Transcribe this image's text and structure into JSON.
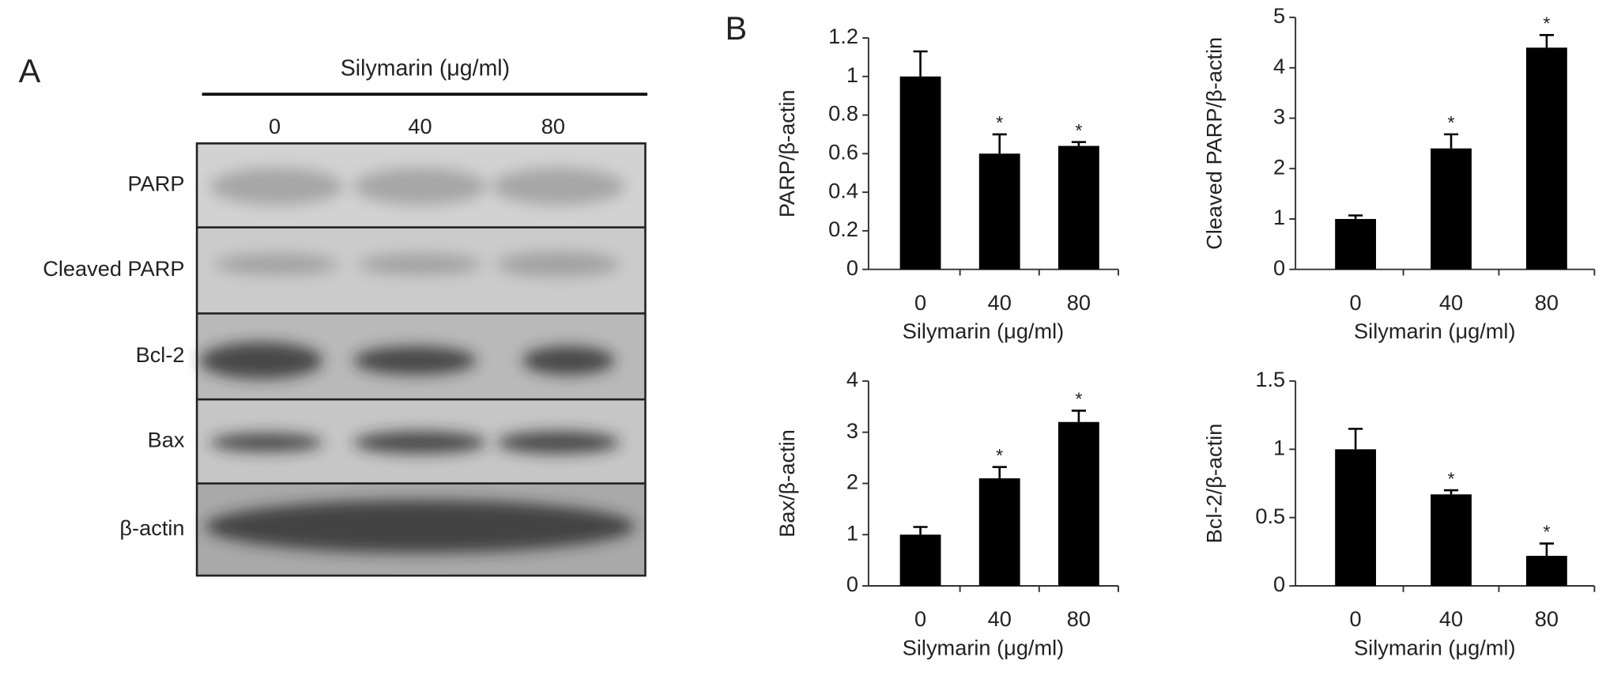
{
  "panel_a": {
    "label": "A",
    "title": "Silymarin (μg/ml)",
    "lanes": [
      "0",
      "40",
      "80"
    ],
    "rows": [
      "PARP",
      "Cleaved PARP",
      "Bcl-2",
      "Bax",
      "β-actin"
    ]
  },
  "panel_b_label": "B",
  "chart_data": [
    {
      "type": "bar",
      "ylabel": "PARP/β-actin",
      "xlabel": "Silymarin (μg/ml)",
      "categories": [
        "0",
        "40",
        "80"
      ],
      "values": [
        1.0,
        0.6,
        0.64
      ],
      "errors": [
        0.13,
        0.1,
        0.02
      ],
      "significance": [
        null,
        "*",
        "*"
      ],
      "color": "#000000",
      "ylim": [
        0,
        1.2
      ],
      "yticks": [
        0,
        0.2,
        0.4,
        0.6,
        0.8,
        1,
        1.2
      ]
    },
    {
      "type": "bar",
      "ylabel": "Cleaved PARP/β-actin",
      "xlabel": "Silymarin (μg/ml)",
      "categories": [
        "0",
        "40",
        "80"
      ],
      "values": [
        1.0,
        2.4,
        4.4
      ],
      "errors": [
        0.07,
        0.28,
        0.25
      ],
      "significance": [
        null,
        "*",
        "*"
      ],
      "color": "#000000",
      "ylim": [
        0,
        5
      ],
      "yticks": [
        0,
        1,
        2,
        3,
        4,
        5
      ]
    },
    {
      "type": "bar",
      "ylabel": "Bax/β-actin",
      "xlabel": "Silymarin (μg/ml)",
      "categories": [
        "0",
        "40",
        "80"
      ],
      "values": [
        1.0,
        2.1,
        3.2
      ],
      "errors": [
        0.15,
        0.22,
        0.22
      ],
      "significance": [
        null,
        "*",
        "*"
      ],
      "color": "#000000",
      "ylim": [
        0,
        4
      ],
      "yticks": [
        0,
        1,
        2,
        3,
        4
      ]
    },
    {
      "type": "bar",
      "ylabel": "Bcl-2/β-actin",
      "xlabel": "Silymarin (μg/ml)",
      "categories": [
        "0",
        "40",
        "80"
      ],
      "values": [
        1.0,
        0.67,
        0.22
      ],
      "errors": [
        0.15,
        0.03,
        0.09
      ],
      "significance": [
        null,
        "*",
        "*"
      ],
      "color": "#000000",
      "ylim": [
        0,
        1.5
      ],
      "yticks": [
        0,
        0.5,
        1,
        1.5
      ]
    }
  ]
}
